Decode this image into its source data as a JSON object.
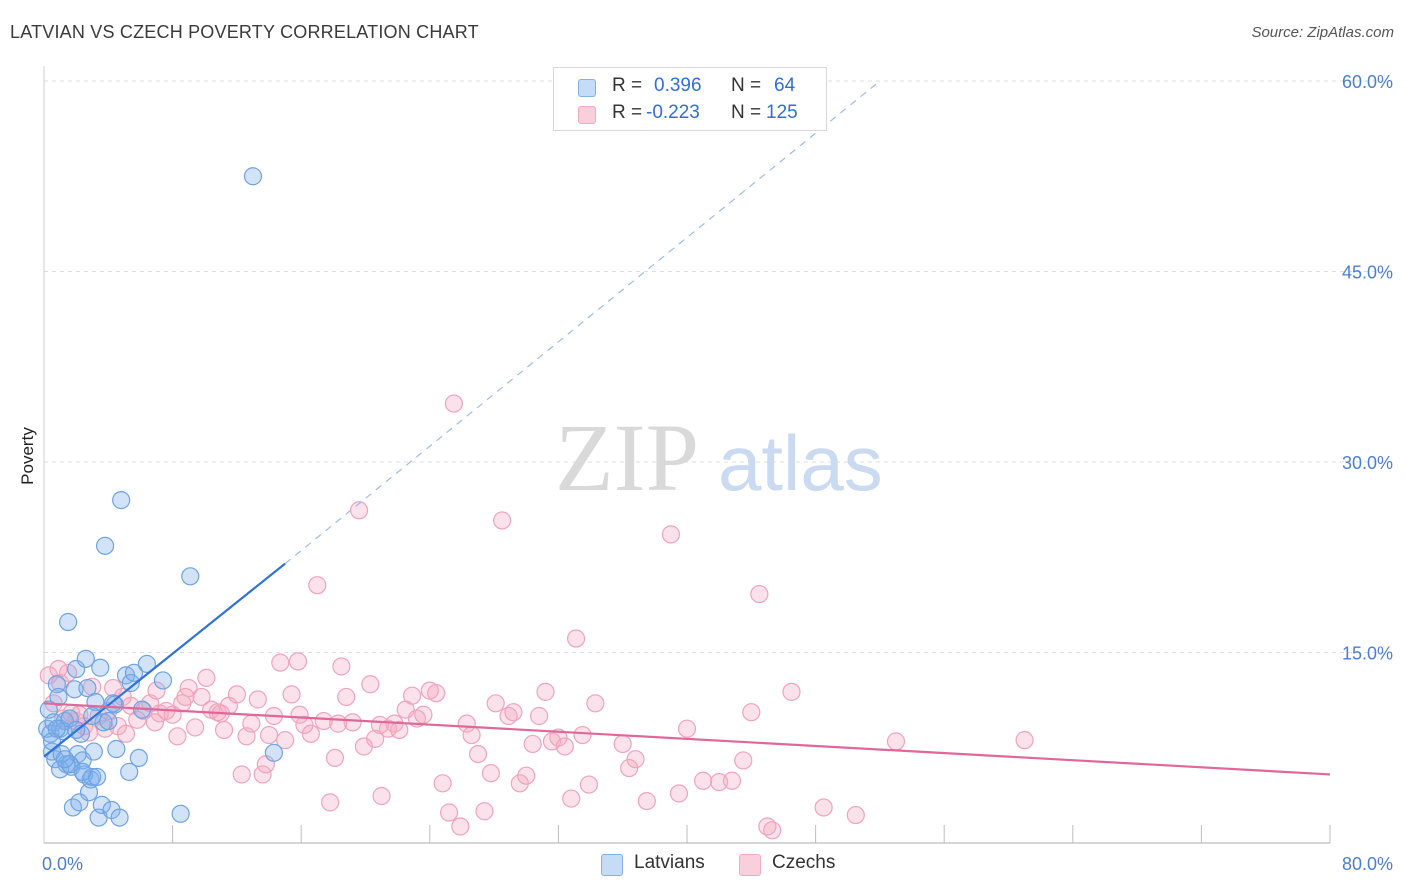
{
  "title": "LATVIAN VS CZECH POVERTY CORRELATION CHART",
  "source": "Source: ZipAtlas.com",
  "watermark": {
    "zip": "ZIP",
    "atlas": "atlas"
  },
  "legend": {
    "rows": [
      {
        "r_label": "R =",
        "r_value": "0.396",
        "n_label": "N =",
        "n_value": "64"
      },
      {
        "r_label": "R =",
        "r_value": "-0.223",
        "n_label": "N =",
        "n_value": "125"
      }
    ]
  },
  "bottom_legend": {
    "latvians": "Latvians",
    "czechs": "Czechs"
  },
  "chart_data": {
    "type": "scatter",
    "title": "LATVIAN VS CZECH POVERTY CORRELATION CHART",
    "xlabel": "",
    "ylabel": "Poverty",
    "xlim": [
      0,
      80
    ],
    "ylim": [
      0,
      60
    ],
    "x_tick_labels": [
      "0.0%",
      "80.0%"
    ],
    "y_ticks": [
      15,
      30,
      45,
      60
    ],
    "y_tick_labels": [
      "15.0%",
      "30.0%",
      "45.0%",
      "60.0%"
    ],
    "grid": true,
    "colors": {
      "latvians": "#7fb0ea",
      "czechs": "#f4a9c1",
      "latvians_line": "#2f72d8",
      "czechs_line": "#e0679a"
    },
    "series": [
      {
        "name": "Latvians",
        "r": 0.396,
        "n": 64,
        "trend": {
          "x0": 0.0,
          "y0": 6.8,
          "x1": 15.0,
          "y1": 22.0,
          "dashed_to_x": 52.0,
          "dashed_to_y": 60.0
        },
        "points": [
          [
            0.2,
            9.0
          ],
          [
            0.3,
            10.5
          ],
          [
            0.4,
            8.6
          ],
          [
            0.5,
            7.2
          ],
          [
            0.6,
            9.5
          ],
          [
            0.7,
            6.6
          ],
          [
            0.8,
            12.5
          ],
          [
            0.9,
            11.5
          ],
          [
            1.0,
            9.0
          ],
          [
            1.1,
            7.0
          ],
          [
            1.2,
            8.8
          ],
          [
            1.3,
            9.6
          ],
          [
            1.4,
            6.2
          ],
          [
            1.5,
            17.4
          ],
          [
            1.6,
            9.8
          ],
          [
            1.7,
            6.0
          ],
          [
            1.8,
            2.8
          ],
          [
            1.9,
            12.1
          ],
          [
            2.0,
            13.7
          ],
          [
            2.1,
            7.0
          ],
          [
            2.2,
            3.2
          ],
          [
            2.3,
            8.6
          ],
          [
            2.4,
            6.5
          ],
          [
            2.5,
            5.4
          ],
          [
            2.6,
            14.5
          ],
          [
            2.7,
            12.2
          ],
          [
            2.8,
            4.0
          ],
          [
            2.9,
            5.0
          ],
          [
            3.0,
            5.2
          ],
          [
            3.1,
            7.2
          ],
          [
            3.2,
            11.1
          ],
          [
            3.3,
            5.2
          ],
          [
            3.4,
            2.0
          ],
          [
            3.5,
            13.8
          ],
          [
            3.6,
            3.0
          ],
          [
            3.7,
            9.5
          ],
          [
            3.8,
            23.4
          ],
          [
            4.0,
            9.6
          ],
          [
            4.2,
            2.6
          ],
          [
            4.3,
            11.0
          ],
          [
            4.4,
            10.9
          ],
          [
            4.5,
            7.4
          ],
          [
            4.7,
            2.0
          ],
          [
            4.8,
            27.0
          ],
          [
            5.1,
            13.2
          ],
          [
            5.3,
            5.6
          ],
          [
            5.4,
            12.6
          ],
          [
            5.6,
            13.4
          ],
          [
            5.9,
            6.7
          ],
          [
            6.1,
            10.5
          ],
          [
            6.4,
            14.1
          ],
          [
            7.4,
            12.8
          ],
          [
            8.5,
            2.3
          ],
          [
            9.1,
            21.0
          ],
          [
            13.0,
            52.5
          ],
          [
            14.3,
            7.1
          ],
          [
            0.5,
            8.0
          ],
          [
            1.0,
            5.8
          ],
          [
            2.0,
            8.9
          ],
          [
            3.0,
            10.0
          ],
          [
            1.6,
            6.2
          ],
          [
            2.4,
            5.6
          ],
          [
            0.8,
            9.0
          ],
          [
            1.3,
            6.6
          ]
        ]
      },
      {
        "name": "Czechs",
        "r": -0.223,
        "n": 125,
        "trend": {
          "x0": 0.0,
          "y0": 11.0,
          "x1": 80.0,
          "y1": 5.4
        },
        "points": [
          [
            0.3,
            13.2
          ],
          [
            0.6,
            11.0
          ],
          [
            1.0,
            12.6
          ],
          [
            1.2,
            9.8
          ],
          [
            1.5,
            13.4
          ],
          [
            2.0,
            9.6
          ],
          [
            2.2,
            10.1
          ],
          [
            2.5,
            9.2
          ],
          [
            3.0,
            12.3
          ],
          [
            3.4,
            10.0
          ],
          [
            3.8,
            9.0
          ],
          [
            4.0,
            10.4
          ],
          [
            4.3,
            12.2
          ],
          [
            4.6,
            9.2
          ],
          [
            5.1,
            8.6
          ],
          [
            5.4,
            10.8
          ],
          [
            5.8,
            9.7
          ],
          [
            6.2,
            10.4
          ],
          [
            6.6,
            11.0
          ],
          [
            7.0,
            12.0
          ],
          [
            7.2,
            10.2
          ],
          [
            7.6,
            10.4
          ],
          [
            8.0,
            10.1
          ],
          [
            8.3,
            8.4
          ],
          [
            8.6,
            11.0
          ],
          [
            9.0,
            12.2
          ],
          [
            9.4,
            9.1
          ],
          [
            9.8,
            11.5
          ],
          [
            10.1,
            13.0
          ],
          [
            10.4,
            10.5
          ],
          [
            10.8,
            10.3
          ],
          [
            11.2,
            8.9
          ],
          [
            11.5,
            10.8
          ],
          [
            12.0,
            11.7
          ],
          [
            12.3,
            5.4
          ],
          [
            12.6,
            8.4
          ],
          [
            12.9,
            9.4
          ],
          [
            13.3,
            11.3
          ],
          [
            13.6,
            5.4
          ],
          [
            14.0,
            8.5
          ],
          [
            14.3,
            10.0
          ],
          [
            14.7,
            14.2
          ],
          [
            15.0,
            8.1
          ],
          [
            15.4,
            11.7
          ],
          [
            15.8,
            14.3
          ],
          [
            16.2,
            9.3
          ],
          [
            16.6,
            8.6
          ],
          [
            17.0,
            20.3
          ],
          [
            17.4,
            9.6
          ],
          [
            17.8,
            3.2
          ],
          [
            18.1,
            6.7
          ],
          [
            18.5,
            13.9
          ],
          [
            18.8,
            11.5
          ],
          [
            19.2,
            9.5
          ],
          [
            19.6,
            26.2
          ],
          [
            19.9,
            7.6
          ],
          [
            20.3,
            12.5
          ],
          [
            20.6,
            8.2
          ],
          [
            21.0,
            3.7
          ],
          [
            21.4,
            9.0
          ],
          [
            21.8,
            9.4
          ],
          [
            22.1,
            8.9
          ],
          [
            22.5,
            10.5
          ],
          [
            22.9,
            11.6
          ],
          [
            23.2,
            9.8
          ],
          [
            23.6,
            10.1
          ],
          [
            24.0,
            12.0
          ],
          [
            24.4,
            11.8
          ],
          [
            24.8,
            4.7
          ],
          [
            25.2,
            2.4
          ],
          [
            25.5,
            34.6
          ],
          [
            25.9,
            1.3
          ],
          [
            26.3,
            9.4
          ],
          [
            26.6,
            8.5
          ],
          [
            27.0,
            7.0
          ],
          [
            27.4,
            2.5
          ],
          [
            27.8,
            5.5
          ],
          [
            28.1,
            11.0
          ],
          [
            28.5,
            25.4
          ],
          [
            28.9,
            10.0
          ],
          [
            29.2,
            10.3
          ],
          [
            29.6,
            4.7
          ],
          [
            30.0,
            5.3
          ],
          [
            30.4,
            7.8
          ],
          [
            30.8,
            10.0
          ],
          [
            31.2,
            11.9
          ],
          [
            31.6,
            8.0
          ],
          [
            32.0,
            8.3
          ],
          [
            32.4,
            7.6
          ],
          [
            32.8,
            3.5
          ],
          [
            33.1,
            16.1
          ],
          [
            33.5,
            8.5
          ],
          [
            33.9,
            4.6
          ],
          [
            34.3,
            11.0
          ],
          [
            36.0,
            7.8
          ],
          [
            36.4,
            5.9
          ],
          [
            36.8,
            6.6
          ],
          [
            37.5,
            3.3
          ],
          [
            39.0,
            24.3
          ],
          [
            39.5,
            3.9
          ],
          [
            40.0,
            9.0
          ],
          [
            41.0,
            4.9
          ],
          [
            42.0,
            4.8
          ],
          [
            42.8,
            4.9
          ],
          [
            43.5,
            6.5
          ],
          [
            44.0,
            10.3
          ],
          [
            44.5,
            19.6
          ],
          [
            45.0,
            1.3
          ],
          [
            45.3,
            1.0
          ],
          [
            46.5,
            11.9
          ],
          [
            48.5,
            2.8
          ],
          [
            50.5,
            2.2
          ],
          [
            53.0,
            8.0
          ],
          [
            61.0,
            8.1
          ],
          [
            0.9,
            13.7
          ],
          [
            1.7,
            10.2
          ],
          [
            2.8,
            8.7
          ],
          [
            4.9,
            11.5
          ],
          [
            6.9,
            9.5
          ],
          [
            8.8,
            11.5
          ],
          [
            11.0,
            10.2
          ],
          [
            13.8,
            6.2
          ],
          [
            15.9,
            10.1
          ],
          [
            18.3,
            9.4
          ],
          [
            20.9,
            9.3
          ]
        ]
      }
    ]
  }
}
